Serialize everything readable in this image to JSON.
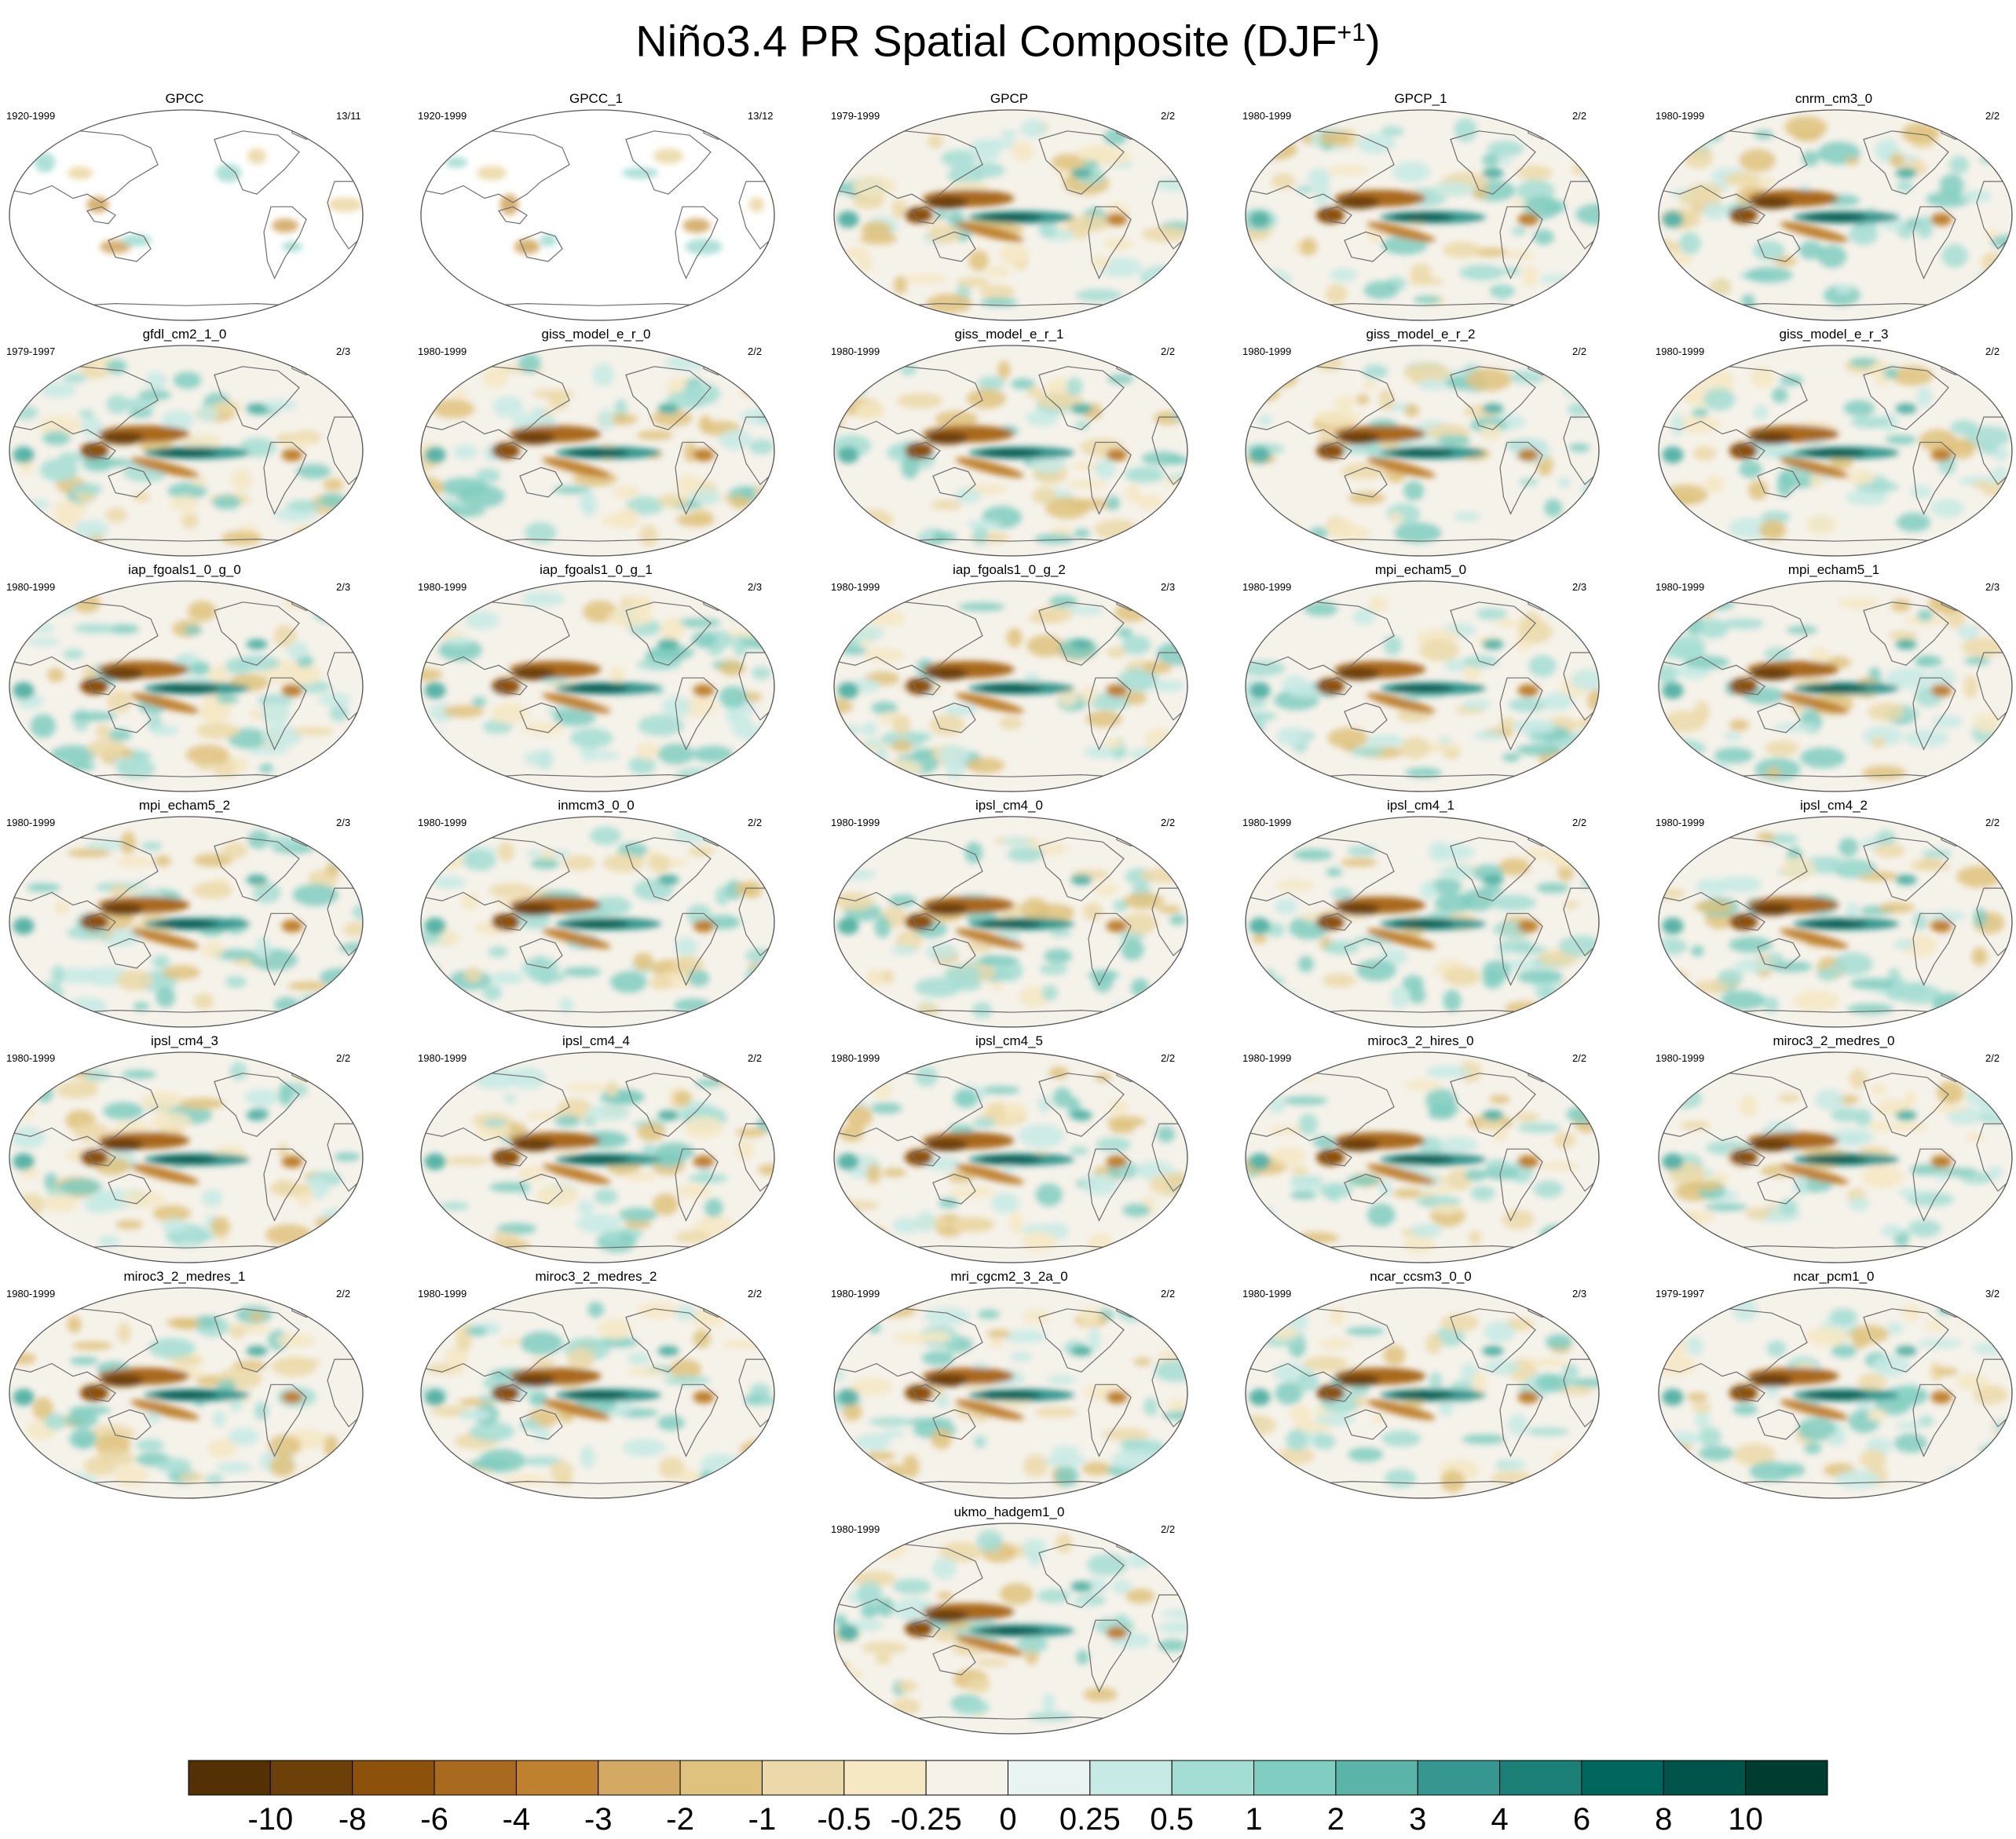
{
  "title": {
    "main": "Niño3.4 PR Spatial Composite (DJF",
    "superscript": "+1",
    "close": ")"
  },
  "colors": {
    "bins": [
      "#543005",
      "#6d4009",
      "#8c510a",
      "#a9691f",
      "#bf812d",
      "#d3a964",
      "#dfc27d",
      "#ecd9a9",
      "#f6e8c3",
      "#f5f2ea",
      "#e9f4f2",
      "#c7eae5",
      "#a4ddd3",
      "#80cdc1",
      "#5ab4a7",
      "#35978f",
      "#1b7f76",
      "#01665e",
      "#00544a",
      "#003c30"
    ],
    "ocean_base": "#f5f2ea",
    "coast": "#6e6e6e"
  },
  "panels": [
    {
      "name": "GPCC",
      "years": "1920-1999",
      "frac": "13/11",
      "style": "land"
    },
    {
      "name": "GPCC_1",
      "years": "1920-1999",
      "frac": "13/12",
      "style": "land"
    },
    {
      "name": "GPCP",
      "years": "1979-1999",
      "frac": "2/2",
      "style": "obs"
    },
    {
      "name": "GPCP_1",
      "years": "1980-1999",
      "frac": "2/2",
      "style": "obs"
    },
    {
      "name": "cnrm_cm3_0",
      "years": "1980-1999",
      "frac": "2/2",
      "style": "model"
    },
    {
      "name": "gfdl_cm2_1_0",
      "years": "1979-1997",
      "frac": "2/3",
      "style": "model"
    },
    {
      "name": "giss_model_e_r_0",
      "years": "1980-1999",
      "frac": "2/2",
      "style": "model"
    },
    {
      "name": "giss_model_e_r_1",
      "years": "1980-1999",
      "frac": "2/2",
      "style": "model"
    },
    {
      "name": "giss_model_e_r_2",
      "years": "1980-1999",
      "frac": "2/2",
      "style": "model"
    },
    {
      "name": "giss_model_e_r_3",
      "years": "1980-1999",
      "frac": "2/2",
      "style": "model"
    },
    {
      "name": "iap_fgoals1_0_g_0",
      "years": "1980-1999",
      "frac": "2/3",
      "style": "model"
    },
    {
      "name": "iap_fgoals1_0_g_1",
      "years": "1980-1999",
      "frac": "2/3",
      "style": "model"
    },
    {
      "name": "iap_fgoals1_0_g_2",
      "years": "1980-1999",
      "frac": "2/3",
      "style": "model"
    },
    {
      "name": "mpi_echam5_0",
      "years": "1980-1999",
      "frac": "2/3",
      "style": "model"
    },
    {
      "name": "mpi_echam5_1",
      "years": "1980-1999",
      "frac": "2/3",
      "style": "model"
    },
    {
      "name": "mpi_echam5_2",
      "years": "1980-1999",
      "frac": "2/3",
      "style": "model"
    },
    {
      "name": "inmcm3_0_0",
      "years": "1980-1999",
      "frac": "2/2",
      "style": "model"
    },
    {
      "name": "ipsl_cm4_0",
      "years": "1980-1999",
      "frac": "2/2",
      "style": "model"
    },
    {
      "name": "ipsl_cm4_1",
      "years": "1980-1999",
      "frac": "2/2",
      "style": "model"
    },
    {
      "name": "ipsl_cm4_2",
      "years": "1980-1999",
      "frac": "2/2",
      "style": "model"
    },
    {
      "name": "ipsl_cm4_3",
      "years": "1980-1999",
      "frac": "2/2",
      "style": "model"
    },
    {
      "name": "ipsl_cm4_4",
      "years": "1980-1999",
      "frac": "2/2",
      "style": "model"
    },
    {
      "name": "ipsl_cm4_5",
      "years": "1980-1999",
      "frac": "2/2",
      "style": "model"
    },
    {
      "name": "miroc3_2_hires_0",
      "years": "1980-1999",
      "frac": "2/2",
      "style": "model"
    },
    {
      "name": "miroc3_2_medres_0",
      "years": "1980-1999",
      "frac": "2/2",
      "style": "model"
    },
    {
      "name": "miroc3_2_medres_1",
      "years": "1980-1999",
      "frac": "2/2",
      "style": "model"
    },
    {
      "name": "miroc3_2_medres_2",
      "years": "1980-1999",
      "frac": "2/2",
      "style": "model"
    },
    {
      "name": "mri_cgcm2_3_2a_0",
      "years": "1980-1999",
      "frac": "2/2",
      "style": "model"
    },
    {
      "name": "ncar_ccsm3_0_0",
      "years": "1980-1999",
      "frac": "2/3",
      "style": "model"
    },
    {
      "name": "ncar_pcm1_0",
      "years": "1979-1997",
      "frac": "3/2",
      "style": "model"
    },
    {
      "name": "ukmo_hadgem1_0",
      "years": "1980-1999",
      "frac": "2/2",
      "style": "model"
    }
  ],
  "chart_data": {
    "type": "heatmap",
    "title": "Niño3.4 PR Spatial Composite (DJF+1)",
    "colorbar": {
      "tick_labels": [
        "-10",
        "-8",
        "-6",
        "-4",
        "-3",
        "-2",
        "-1",
        "-0.5",
        "-0.25",
        "0",
        "0.25",
        "0.5",
        "1",
        "2",
        "3",
        "4",
        "6",
        "8",
        "10"
      ],
      "levels": [
        -10,
        -8,
        -6,
        -4,
        -3,
        -2,
        -1,
        -0.5,
        -0.25,
        0,
        0.25,
        0.5,
        1,
        2,
        3,
        4,
        6,
        8,
        10
      ],
      "n_bins": 20
    }
  }
}
